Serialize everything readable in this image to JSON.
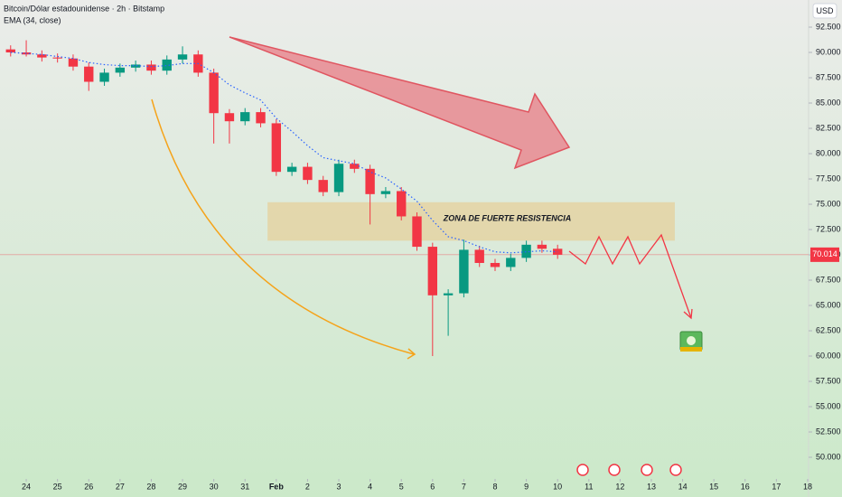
{
  "chart_data": {
    "type": "candlestick",
    "title": "Bitcoin/Dólar estadounidense · 2h · Bitstamp",
    "subtitle": "EMA (34, close)",
    "currency": "USD",
    "x": [
      -0.5,
      0,
      0.5,
      1,
      1.5,
      2,
      2.5,
      3,
      3.5,
      4,
      4.5,
      5,
      5.5,
      6,
      6.5,
      7,
      7.5,
      8,
      8.5,
      9,
      9.5,
      10,
      10.5,
      11,
      11.5,
      12,
      12.5,
      13,
      13.5,
      14,
      14.5,
      15,
      15.5,
      16,
      16.5,
      17
    ],
    "open": [
      90.3,
      90.0,
      89.8,
      89.5,
      89.4,
      88.6,
      87.1,
      88.0,
      88.5,
      88.8,
      88.2,
      89.3,
      89.8,
      88.0,
      84.0,
      83.2,
      84.1,
      83.0,
      78.2,
      78.7,
      77.4,
      76.2,
      79.0,
      78.5,
      76.0,
      76.3,
      73.8,
      70.8,
      66.0,
      66.2,
      70.5,
      69.2,
      68.8,
      69.7,
      71.0,
      70.6
    ],
    "high": [
      90.7,
      91.2,
      90.2,
      89.9,
      89.8,
      89.0,
      88.4,
      88.9,
      89.2,
      89.2,
      89.7,
      90.6,
      90.2,
      88.4,
      84.4,
      84.5,
      84.5,
      83.4,
      79.1,
      79.1,
      77.8,
      79.4,
      79.4,
      78.9,
      76.7,
      76.7,
      74.2,
      71.2,
      66.6,
      71.5,
      70.9,
      69.6,
      70.1,
      71.4,
      71.4,
      71.0
    ],
    "low": [
      89.6,
      89.6,
      89.1,
      89.0,
      88.2,
      86.2,
      86.7,
      87.6,
      88.1,
      87.8,
      87.8,
      88.9,
      87.6,
      81.0,
      81.0,
      82.8,
      82.6,
      77.8,
      77.8,
      77.0,
      75.8,
      75.8,
      78.1,
      73.0,
      75.6,
      73.4,
      70.4,
      60.0,
      62.0,
      65.8,
      68.8,
      68.4,
      68.4,
      69.3,
      70.2,
      69.6
    ],
    "close": [
      90.0,
      89.8,
      89.5,
      89.4,
      88.6,
      87.1,
      88.0,
      88.5,
      88.8,
      88.2,
      89.3,
      89.8,
      88.0,
      84.0,
      83.2,
      84.1,
      83.0,
      78.2,
      78.7,
      77.4,
      76.2,
      79.0,
      78.5,
      76.0,
      76.3,
      73.8,
      70.8,
      66.0,
      66.2,
      70.5,
      69.2,
      68.8,
      69.7,
      71.0,
      70.6,
      70.014
    ],
    "up_color": "#089981",
    "down_color": "#f23645",
    "ema": {
      "color": "#2962ff",
      "values": [
        90.0,
        89.9,
        89.8,
        89.6,
        89.4,
        89.0,
        88.8,
        88.7,
        88.7,
        88.6,
        88.7,
        88.9,
        88.9,
        88.0,
        86.8,
        86.0,
        85.3,
        83.5,
        82.2,
        80.8,
        79.6,
        79.3,
        79.0,
        78.2,
        77.6,
        76.5,
        75.3,
        73.4,
        71.8,
        71.4,
        70.8,
        70.3,
        70.2,
        70.3,
        70.4,
        70.3
      ]
    },
    "last_price": 70.014,
    "zone": {
      "label": "ZONA DE FUERTE RESISTENCIA",
      "ymin": 71.4,
      "ymax": 75.2,
      "x": [
        7.72,
        20.75
      ]
    },
    "ylim": [
      47.86,
      95.18
    ],
    "yticks": [
      {
        "value": 50,
        "label": "50.000"
      },
      {
        "value": 52.5,
        "label": "52.500"
      },
      {
        "value": 55,
        "label": "55.000"
      },
      {
        "value": 57.5,
        "label": "57.500"
      },
      {
        "value": 60,
        "label": "60.000"
      },
      {
        "value": 62.5,
        "label": "62.500"
      },
      {
        "value": 65,
        "label": "65.000"
      },
      {
        "value": 67.5,
        "label": "67.500"
      },
      {
        "value": 70,
        "label": "70.000"
      },
      {
        "value": 72.5,
        "label": "72.500"
      },
      {
        "value": 75,
        "label": "75.000"
      },
      {
        "value": 77.5,
        "label": "77.500"
      },
      {
        "value": 80,
        "label": "80.000"
      },
      {
        "value": 82.5,
        "label": "82.500"
      },
      {
        "value": 85,
        "label": "85.000"
      },
      {
        "value": 87.5,
        "label": "87.500"
      },
      {
        "value": 90,
        "label": "90.000"
      },
      {
        "value": 92.5,
        "label": "92.500"
      }
    ],
    "xlim": [
      -0.84,
      25.03
    ],
    "xticks": [
      {
        "value": 0,
        "label": "24"
      },
      {
        "value": 1,
        "label": "25"
      },
      {
        "value": 2,
        "label": "26"
      },
      {
        "value": 3,
        "label": "27"
      },
      {
        "value": 4,
        "label": "28"
      },
      {
        "value": 5,
        "label": "29"
      },
      {
        "value": 6,
        "label": "30"
      },
      {
        "value": 7,
        "label": "31"
      },
      {
        "value": 8,
        "label": "Feb"
      },
      {
        "value": 9,
        "label": "2"
      },
      {
        "value": 10,
        "label": "3"
      },
      {
        "value": 11,
        "label": "4"
      },
      {
        "value": 12,
        "label": "5"
      },
      {
        "value": 13,
        "label": "6"
      },
      {
        "value": 14,
        "label": "7"
      },
      {
        "value": 15,
        "label": "8"
      },
      {
        "value": 16,
        "label": "9"
      },
      {
        "value": 17,
        "label": "10"
      },
      {
        "value": 18,
        "label": "11"
      },
      {
        "value": 19,
        "label": "12"
      },
      {
        "value": 20,
        "label": "13"
      },
      {
        "value": 21,
        "label": "14"
      },
      {
        "value": 22,
        "label": "15"
      },
      {
        "value": 23,
        "label": "16"
      },
      {
        "value": 24,
        "label": "17"
      },
      {
        "value": 25,
        "label": "18"
      }
    ]
  }
}
